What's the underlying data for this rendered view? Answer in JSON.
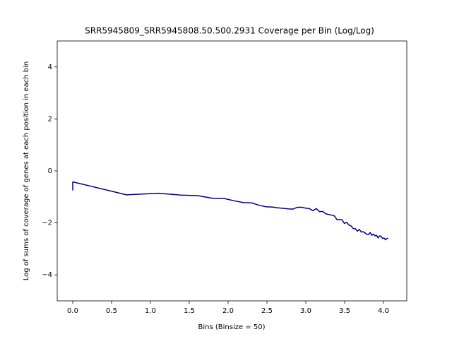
{
  "chart_data": {
    "type": "line",
    "title": "SRR5945809_SRR5945808.50.500.2931 Coverage per Bin (Log/Log)",
    "x_label": "Bins (Binsize = 50)",
    "y_label": "Log of sums of coverage of genes at each position in each bin",
    "xlim": [
      -0.2,
      4.3
    ],
    "ylim": [
      -5,
      5
    ],
    "xticks": [
      {
        "value": 0,
        "label": "0.0"
      },
      0.5,
      {
        "value": 1,
        "label": "1.0"
      },
      1.5,
      {
        "value": 2,
        "label": "2.0"
      },
      2.5,
      {
        "value": 3,
        "label": "3.0"
      },
      3.5,
      {
        "value": 4,
        "label": "4.0"
      }
    ],
    "yticks": [
      {
        "value": -4,
        "label": "−4"
      },
      {
        "value": -2,
        "label": "−2"
      },
      0,
      2,
      4
    ],
    "grid": false,
    "series": [
      {
        "color": "#000080",
        "x": [
          0,
          0,
          0.693,
          1.099,
          1.386,
          1.609,
          1.792,
          1.946,
          2.079,
          2.197,
          2.303,
          2.398,
          2.485,
          2.565,
          2.639,
          2.708,
          2.773,
          2.833,
          2.89,
          2.944,
          2.996,
          3.045,
          3.091,
          3.135,
          3.178,
          3.219,
          3.258,
          3.296,
          3.332,
          3.367,
          3.401,
          3.434,
          3.466,
          3.497,
          3.526,
          3.555,
          3.584,
          3.611,
          3.638,
          3.664,
          3.689,
          3.714,
          3.738,
          3.761,
          3.784,
          3.807,
          3.829,
          3.85,
          3.871,
          3.892,
          3.912,
          3.932,
          3.951,
          3.97,
          3.989,
          4.007,
          4.025,
          4.043,
          4.06
        ],
        "values": [
          -0.75,
          -0.42,
          -0.92,
          -0.86,
          -0.93,
          -0.95,
          -1.05,
          -1.06,
          -1.15,
          -1.22,
          -1.23,
          -1.32,
          -1.38,
          -1.39,
          -1.42,
          -1.44,
          -1.46,
          -1.47,
          -1.4,
          -1.4,
          -1.43,
          -1.45,
          -1.53,
          -1.45,
          -1.57,
          -1.56,
          -1.65,
          -1.68,
          -1.7,
          -1.73,
          -1.87,
          -1.87,
          -1.88,
          -2.02,
          -1.98,
          -2.08,
          -2.12,
          -2.22,
          -2.22,
          -2.32,
          -2.25,
          -2.35,
          -2.34,
          -2.38,
          -2.44,
          -2.45,
          -2.37,
          -2.48,
          -2.43,
          -2.5,
          -2.48,
          -2.58,
          -2.5,
          -2.52,
          -2.6,
          -2.58,
          -2.65,
          -2.6,
          -2.6
        ]
      }
    ]
  }
}
